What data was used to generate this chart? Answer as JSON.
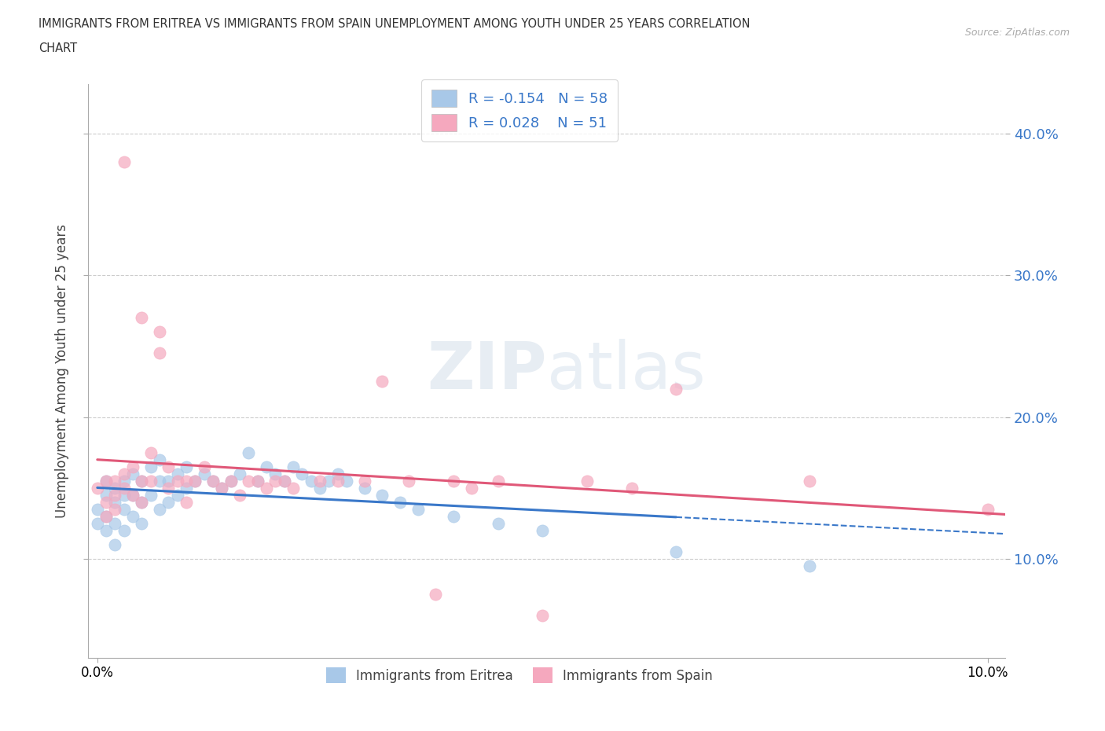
{
  "title_line1": "IMMIGRANTS FROM ERITREA VS IMMIGRANTS FROM SPAIN UNEMPLOYMENT AMONG YOUTH UNDER 25 YEARS CORRELATION",
  "title_line2": "CHART",
  "source": "Source: ZipAtlas.com",
  "ylabel": "Unemployment Among Youth under 25 years",
  "y_ticks": [
    0.1,
    0.2,
    0.3,
    0.4
  ],
  "y_tick_labels": [
    "10.0%",
    "20.0%",
    "30.0%",
    "40.0%"
  ],
  "xlim": [
    -0.001,
    0.102
  ],
  "ylim": [
    0.03,
    0.435
  ],
  "color_eritrea": "#a8c8e8",
  "color_spain": "#f5a8be",
  "line_color_eritrea": "#3a78c9",
  "line_color_spain": "#e05878",
  "R_eritrea": -0.154,
  "N_eritrea": 58,
  "R_spain": 0.028,
  "N_spain": 51,
  "eritrea_x": [
    0.0,
    0.0,
    0.001,
    0.001,
    0.001,
    0.001,
    0.002,
    0.002,
    0.002,
    0.002,
    0.003,
    0.003,
    0.003,
    0.003,
    0.004,
    0.004,
    0.004,
    0.005,
    0.005,
    0.005,
    0.006,
    0.006,
    0.007,
    0.007,
    0.007,
    0.008,
    0.008,
    0.009,
    0.009,
    0.01,
    0.01,
    0.011,
    0.012,
    0.013,
    0.014,
    0.015,
    0.016,
    0.017,
    0.018,
    0.019,
    0.02,
    0.021,
    0.022,
    0.023,
    0.024,
    0.025,
    0.026,
    0.027,
    0.028,
    0.03,
    0.032,
    0.034,
    0.036,
    0.04,
    0.045,
    0.05,
    0.065,
    0.08
  ],
  "eritrea_y": [
    0.125,
    0.135,
    0.155,
    0.145,
    0.13,
    0.12,
    0.15,
    0.14,
    0.125,
    0.11,
    0.155,
    0.145,
    0.135,
    0.12,
    0.16,
    0.145,
    0.13,
    0.155,
    0.14,
    0.125,
    0.165,
    0.145,
    0.17,
    0.155,
    0.135,
    0.155,
    0.14,
    0.16,
    0.145,
    0.165,
    0.15,
    0.155,
    0.16,
    0.155,
    0.15,
    0.155,
    0.16,
    0.175,
    0.155,
    0.165,
    0.16,
    0.155,
    0.165,
    0.16,
    0.155,
    0.15,
    0.155,
    0.16,
    0.155,
    0.15,
    0.145,
    0.14,
    0.135,
    0.13,
    0.125,
    0.12,
    0.105,
    0.095
  ],
  "spain_x": [
    0.0,
    0.001,
    0.001,
    0.001,
    0.002,
    0.002,
    0.002,
    0.003,
    0.003,
    0.003,
    0.004,
    0.004,
    0.005,
    0.005,
    0.005,
    0.006,
    0.006,
    0.007,
    0.007,
    0.008,
    0.008,
    0.009,
    0.01,
    0.01,
    0.011,
    0.012,
    0.013,
    0.014,
    0.015,
    0.016,
    0.017,
    0.018,
    0.019,
    0.02,
    0.021,
    0.022,
    0.025,
    0.027,
    0.03,
    0.032,
    0.035,
    0.038,
    0.04,
    0.042,
    0.045,
    0.05,
    0.055,
    0.06,
    0.065,
    0.08,
    0.1
  ],
  "spain_y": [
    0.15,
    0.155,
    0.14,
    0.13,
    0.155,
    0.145,
    0.135,
    0.38,
    0.16,
    0.15,
    0.165,
    0.145,
    0.27,
    0.155,
    0.14,
    0.175,
    0.155,
    0.26,
    0.245,
    0.165,
    0.15,
    0.155,
    0.155,
    0.14,
    0.155,
    0.165,
    0.155,
    0.15,
    0.155,
    0.145,
    0.155,
    0.155,
    0.15,
    0.155,
    0.155,
    0.15,
    0.155,
    0.155,
    0.155,
    0.225,
    0.155,
    0.075,
    0.155,
    0.15,
    0.155,
    0.06,
    0.155,
    0.15,
    0.22,
    0.155,
    0.135
  ]
}
